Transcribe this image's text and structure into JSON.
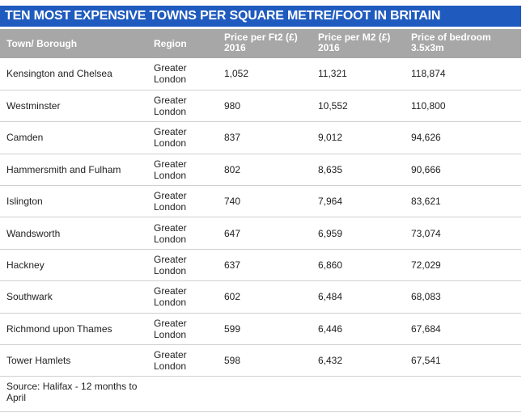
{
  "title": "TEN MOST EXPENSIVE TOWNS PER SQUARE METRE/FOOT IN BRITAIN",
  "colors": {
    "title_bg": "#1f5bbf",
    "header_bg": "#a7a7a7"
  },
  "chart_data": {
    "type": "table",
    "title": "TEN MOST EXPENSIVE TOWNS PER SQUARE METRE/FOOT IN BRITAIN",
    "columns": [
      "Town/ Borough",
      "Region",
      "Price per Ft2 (£) 2016",
      "Price per M2 (£) 2016",
      "Price of bedroom 3.5x3m"
    ],
    "rows": [
      [
        "Kensington and Chelsea",
        "Greater London",
        "1,052",
        "11,321",
        "118,874"
      ],
      [
        "Westminster",
        "Greater London",
        "980",
        "10,552",
        "110,800"
      ],
      [
        "Camden",
        "Greater London",
        "837",
        "9,012",
        "94,626"
      ],
      [
        "Hammersmith and Fulham",
        "Greater London",
        "802",
        "8,635",
        "90,666"
      ],
      [
        "Islington",
        "Greater London",
        "740",
        "7,964",
        "83,621"
      ],
      [
        "Wandsworth",
        "Greater London",
        "647",
        "6,959",
        "73,074"
      ],
      [
        "Hackney",
        "Greater London",
        "637",
        "6,860",
        "72,029"
      ],
      [
        "Southwark",
        "Greater London",
        "602",
        "6,484",
        "68,083"
      ],
      [
        "Richmond upon Thames",
        "Greater London",
        "599",
        "6,446",
        "67,684"
      ],
      [
        "Tower Hamlets",
        "Greater London",
        "598",
        "6,432",
        "67,541"
      ]
    ],
    "source": "Source: Halifax - 12 months to April"
  }
}
